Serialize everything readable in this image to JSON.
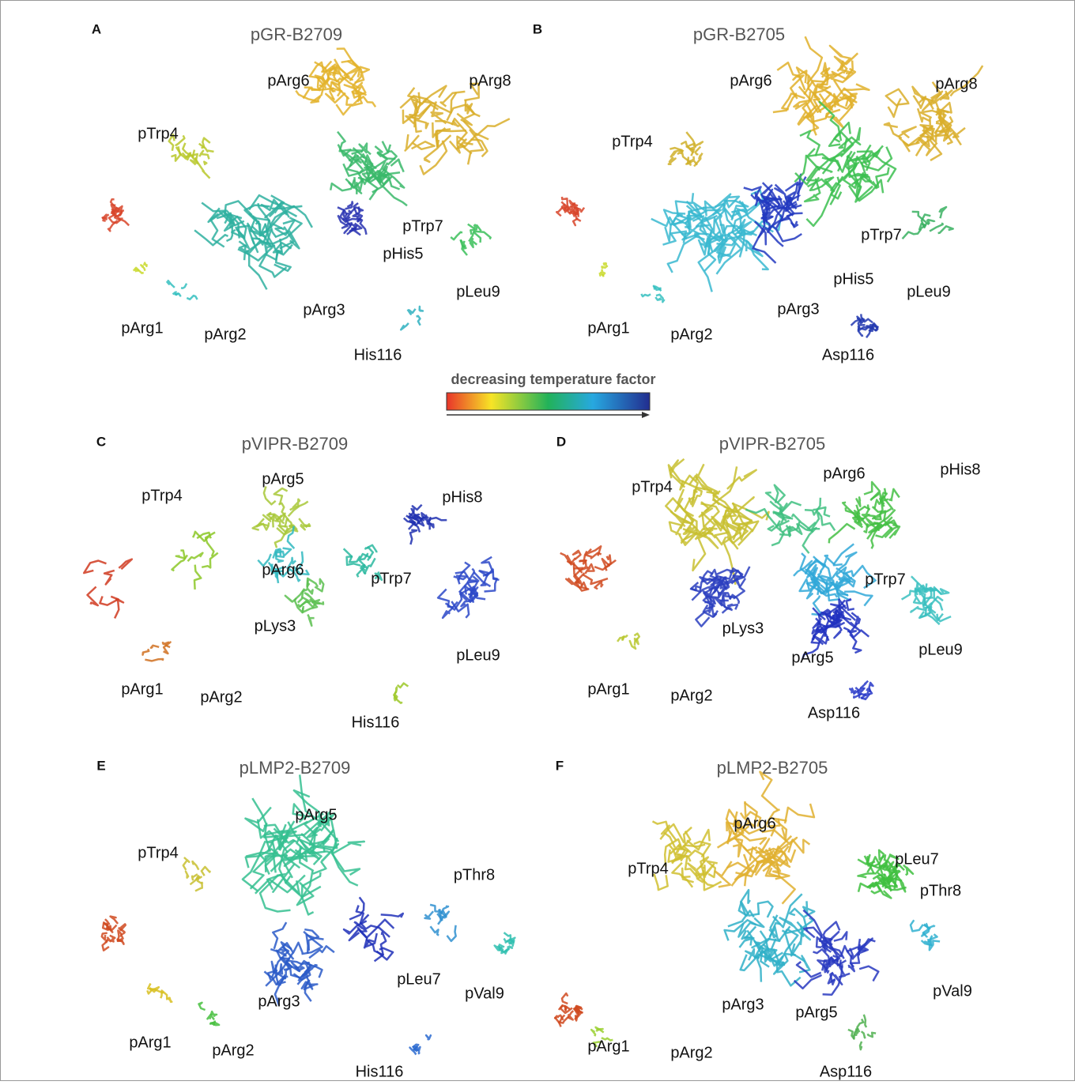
{
  "panels": [
    {
      "letter": "A",
      "title": "pGR-B2709",
      "labels": [
        "pArg6",
        "pArg8",
        "pTrp4",
        "pTrp7",
        "pHis5",
        "pLeu9",
        "pArg3",
        "pArg1",
        "pArg2",
        "His116"
      ]
    },
    {
      "letter": "B",
      "title": "pGR-B2705",
      "labels": [
        "pArg6",
        "pArg8",
        "pTrp4",
        "pTrp7",
        "pHis5",
        "pLeu9",
        "pArg3",
        "pArg1",
        "pArg2",
        "Asp116"
      ]
    },
    {
      "letter": "C",
      "title": "pVIPR-B2709",
      "labels": [
        "pTrp4",
        "pArg5",
        "pHis8",
        "pArg6",
        "pTrp7",
        "pLys3",
        "pLeu9",
        "pArg1",
        "pArg2",
        "His116"
      ]
    },
    {
      "letter": "D",
      "title": "pVIPR-B2705",
      "labels": [
        "pTrp4",
        "pArg6",
        "pHis8",
        "pTrp7",
        "pLys3",
        "pLeu9",
        "pArg5",
        "pArg1",
        "pArg2",
        "Asp116"
      ]
    },
    {
      "letter": "E",
      "title": "pLMP2-B2709",
      "labels": [
        "pArg5",
        "pTrp4",
        "pThr8",
        "pLeu7",
        "pVal9",
        "pArg3",
        "pArg1",
        "pArg2",
        "His116"
      ]
    },
    {
      "letter": "F",
      "title": "pLMP2-B2705",
      "labels": [
        "pArg6",
        "pLeu7",
        "pTrp4",
        "pThr8",
        "pVal9",
        "pArg3",
        "pArg5",
        "pArg1",
        "pArg2",
        "Asp116"
      ]
    }
  ],
  "colorbar": {
    "label": "decreasing temperature factor"
  }
}
